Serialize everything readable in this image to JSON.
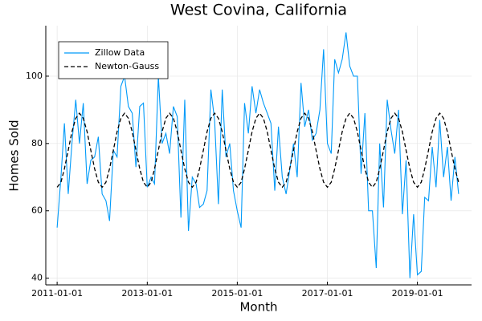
{
  "chart_data": {
    "type": "line",
    "title": "West Covina, California",
    "xlabel": "Month",
    "ylabel": "Homes Sold",
    "x": [
      "2011-01-01",
      "2011-02-01",
      "2011-03-01",
      "2011-04-01",
      "2011-05-01",
      "2011-06-01",
      "2011-07-01",
      "2011-08-01",
      "2011-09-01",
      "2011-10-01",
      "2011-11-01",
      "2011-12-01",
      "2012-01-01",
      "2012-02-01",
      "2012-03-01",
      "2012-04-01",
      "2012-05-01",
      "2012-06-01",
      "2012-07-01",
      "2012-08-01",
      "2012-09-01",
      "2012-10-01",
      "2012-11-01",
      "2012-12-01",
      "2013-01-01",
      "2013-02-01",
      "2013-03-01",
      "2013-04-01",
      "2013-05-01",
      "2013-06-01",
      "2013-07-01",
      "2013-08-01",
      "2013-09-01",
      "2013-10-01",
      "2013-11-01",
      "2013-12-01",
      "2014-01-01",
      "2014-02-01",
      "2014-03-01",
      "2014-04-01",
      "2014-05-01",
      "2014-06-01",
      "2014-07-01",
      "2014-08-01",
      "2014-09-01",
      "2014-10-01",
      "2014-11-01",
      "2014-12-01",
      "2015-01-01",
      "2015-02-01",
      "2015-03-01",
      "2015-04-01",
      "2015-05-01",
      "2015-06-01",
      "2015-07-01",
      "2015-08-01",
      "2015-09-01",
      "2015-10-01",
      "2015-11-01",
      "2015-12-01",
      "2016-01-01",
      "2016-02-01",
      "2016-03-01",
      "2016-04-01",
      "2016-05-01",
      "2016-06-01",
      "2016-07-01",
      "2016-08-01",
      "2016-09-01",
      "2016-10-01",
      "2016-11-01",
      "2016-12-01",
      "2017-01-01",
      "2017-02-01",
      "2017-03-01",
      "2017-04-01",
      "2017-05-01",
      "2017-06-01",
      "2017-07-01",
      "2017-08-01",
      "2017-09-01",
      "2017-10-01",
      "2017-11-01",
      "2017-12-01",
      "2018-01-01",
      "2018-02-01",
      "2018-03-01",
      "2018-04-01",
      "2018-05-01",
      "2018-06-01",
      "2018-07-01",
      "2018-08-01",
      "2018-09-01",
      "2018-10-01",
      "2018-11-01",
      "2018-12-01",
      "2019-01-01",
      "2019-02-01",
      "2019-03-01",
      "2019-04-01",
      "2019-05-01",
      "2019-06-01",
      "2019-07-01",
      "2019-08-01",
      "2019-09-01",
      "2019-10-01",
      "2019-11-01",
      "2019-12-01"
    ],
    "series": [
      {
        "name": "Zillow Data",
        "color": "#009af9",
        "dash": false,
        "values": [
          55,
          70,
          86,
          65,
          80,
          93,
          80,
          92,
          68,
          75,
          76,
          82,
          65,
          63,
          57,
          78,
          76,
          97,
          100,
          91,
          89,
          73,
          91,
          92,
          67,
          70,
          68,
          100,
          80,
          83,
          77,
          91,
          88,
          58,
          93,
          54,
          70,
          68,
          61,
          62,
          66,
          96,
          87,
          62,
          96,
          76,
          80,
          66,
          60,
          55,
          92,
          83,
          97,
          89,
          96,
          92,
          89,
          86,
          66,
          85,
          70,
          65,
          72,
          80,
          70,
          98,
          85,
          90,
          81,
          83,
          90,
          108,
          80,
          77,
          105,
          101,
          105,
          113,
          103,
          100,
          100,
          71,
          89,
          60,
          60,
          43,
          80,
          61,
          93,
          84,
          77,
          90,
          59,
          75,
          40,
          59,
          41,
          42,
          64,
          63,
          79,
          67,
          87,
          70,
          79,
          63,
          76,
          65
        ]
      },
      {
        "name": "Newton-Gauss",
        "color": "#000000",
        "dash": true,
        "values": [
          67,
          68.5,
          72.5,
          78,
          83.5,
          87.5,
          89,
          87.5,
          83.5,
          78,
          72.5,
          68.5,
          67,
          68.5,
          72.5,
          78,
          83.5,
          87.5,
          89,
          87.5,
          83.5,
          78,
          72.5,
          68.5,
          67,
          68.5,
          72.5,
          78,
          83.5,
          87.5,
          89,
          87.5,
          83.5,
          78,
          72.5,
          68.5,
          67,
          68.5,
          72.5,
          78,
          83.5,
          87.5,
          89,
          87.5,
          83.5,
          78,
          72.5,
          68.5,
          67,
          68.5,
          72.5,
          78,
          83.5,
          87.5,
          89,
          87.5,
          83.5,
          78,
          72.5,
          68.5,
          67,
          68.5,
          72.5,
          78,
          83.5,
          87.5,
          89,
          87.5,
          83.5,
          78,
          72.5,
          68.5,
          67,
          68.5,
          72.5,
          78,
          83.5,
          87.5,
          89,
          87.5,
          83.5,
          78,
          72.5,
          68.5,
          67,
          68.5,
          72.5,
          78,
          83.5,
          87.5,
          89,
          87.5,
          83.5,
          78,
          72.5,
          68.5,
          67,
          68.5,
          72.5,
          78,
          83.5,
          87.5,
          89,
          87.5,
          83.5,
          78,
          72.5,
          68.5
        ]
      }
    ],
    "xlim": [
      "2010-10-01",
      "2020-03-15"
    ],
    "xticks": [
      "2011-01-01",
      "2013-01-01",
      "2015-01-01",
      "2017-01-01",
      "2019-01-01"
    ],
    "ylim": [
      38,
      115
    ],
    "yticks": [
      40,
      60,
      80,
      100
    ],
    "grid": true,
    "legend": "top-left"
  }
}
